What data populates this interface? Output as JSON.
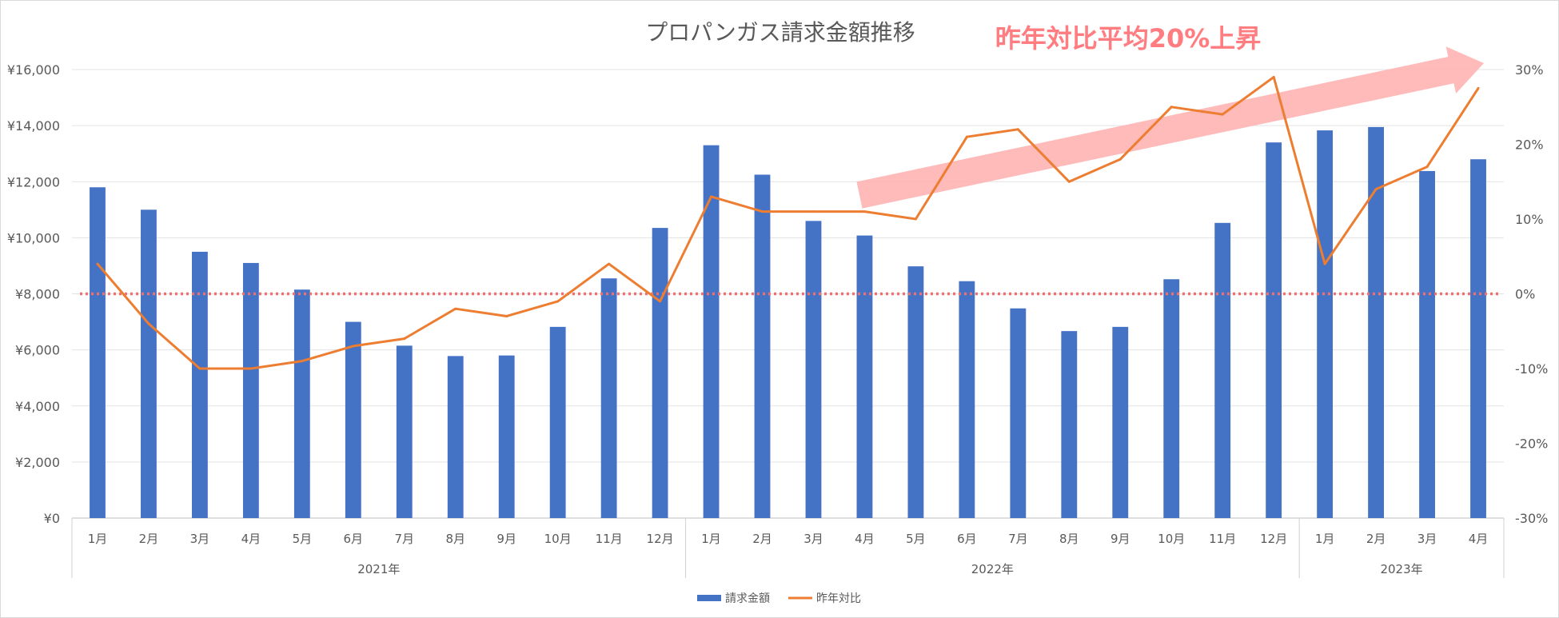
{
  "chart_data": {
    "type": "bar",
    "title": "プロパンガス請求金額推移",
    "months": [
      "1月",
      "2月",
      "3月",
      "4月",
      "5月",
      "6月",
      "7月",
      "8月",
      "9月",
      "10月",
      "11月",
      "12月",
      "1月",
      "2月",
      "3月",
      "4月",
      "5月",
      "6月",
      "7月",
      "8月",
      "9月",
      "10月",
      "11月",
      "12月",
      "1月",
      "2月",
      "3月",
      "4月"
    ],
    "year_groups": [
      {
        "label": "2021年",
        "count": 12
      },
      {
        "label": "2022年",
        "count": 12
      },
      {
        "label": "2023年",
        "count": 4
      }
    ],
    "series": [
      {
        "name": "請求金額",
        "type": "bar",
        "axis": "left",
        "color": "#4472c4",
        "values": [
          11800,
          11000,
          9500,
          9100,
          8150,
          7000,
          6150,
          5780,
          5800,
          6820,
          8550,
          10350,
          13300,
          12250,
          10600,
          10080,
          8980,
          8450,
          7480,
          6670,
          6820,
          8520,
          10530,
          13400,
          13830,
          13950,
          12380,
          12800
        ]
      },
      {
        "name": "昨年対比",
        "type": "line",
        "axis": "right",
        "color": "#ed7d31",
        "values": [
          4,
          -4,
          -10,
          -10,
          -9,
          -7,
          -6,
          -2,
          -3,
          -1,
          4,
          -1,
          13,
          11,
          11,
          11,
          10,
          21,
          22,
          15,
          18,
          25,
          24,
          29,
          4,
          14,
          17,
          27.5
        ]
      }
    ],
    "y_left": {
      "min": 0,
      "max": 16000,
      "step": 2000,
      "tick_labels": [
        "¥0",
        "¥2,000",
        "¥4,000",
        "¥6,000",
        "¥8,000",
        "¥10,000",
        "¥12,000",
        "¥14,000",
        "¥16,000"
      ]
    },
    "y_right": {
      "min": -30,
      "max": 30,
      "step": 10,
      "tick_labels": [
        "-30%",
        "-20%",
        "-10%",
        "0%",
        "10%",
        "20%",
        "30%"
      ]
    },
    "reference_line": {
      "value": 0,
      "axis": "right",
      "color": "#f07070",
      "style": "dotted"
    },
    "grid": true,
    "legend": {
      "position": "bottom",
      "entries": [
        "請求金額",
        "昨年対比"
      ]
    },
    "annotation": {
      "text": "昨年対比平均20%上昇",
      "color": "#ff7c80",
      "arrow_color": "#ffb3b3"
    }
  }
}
